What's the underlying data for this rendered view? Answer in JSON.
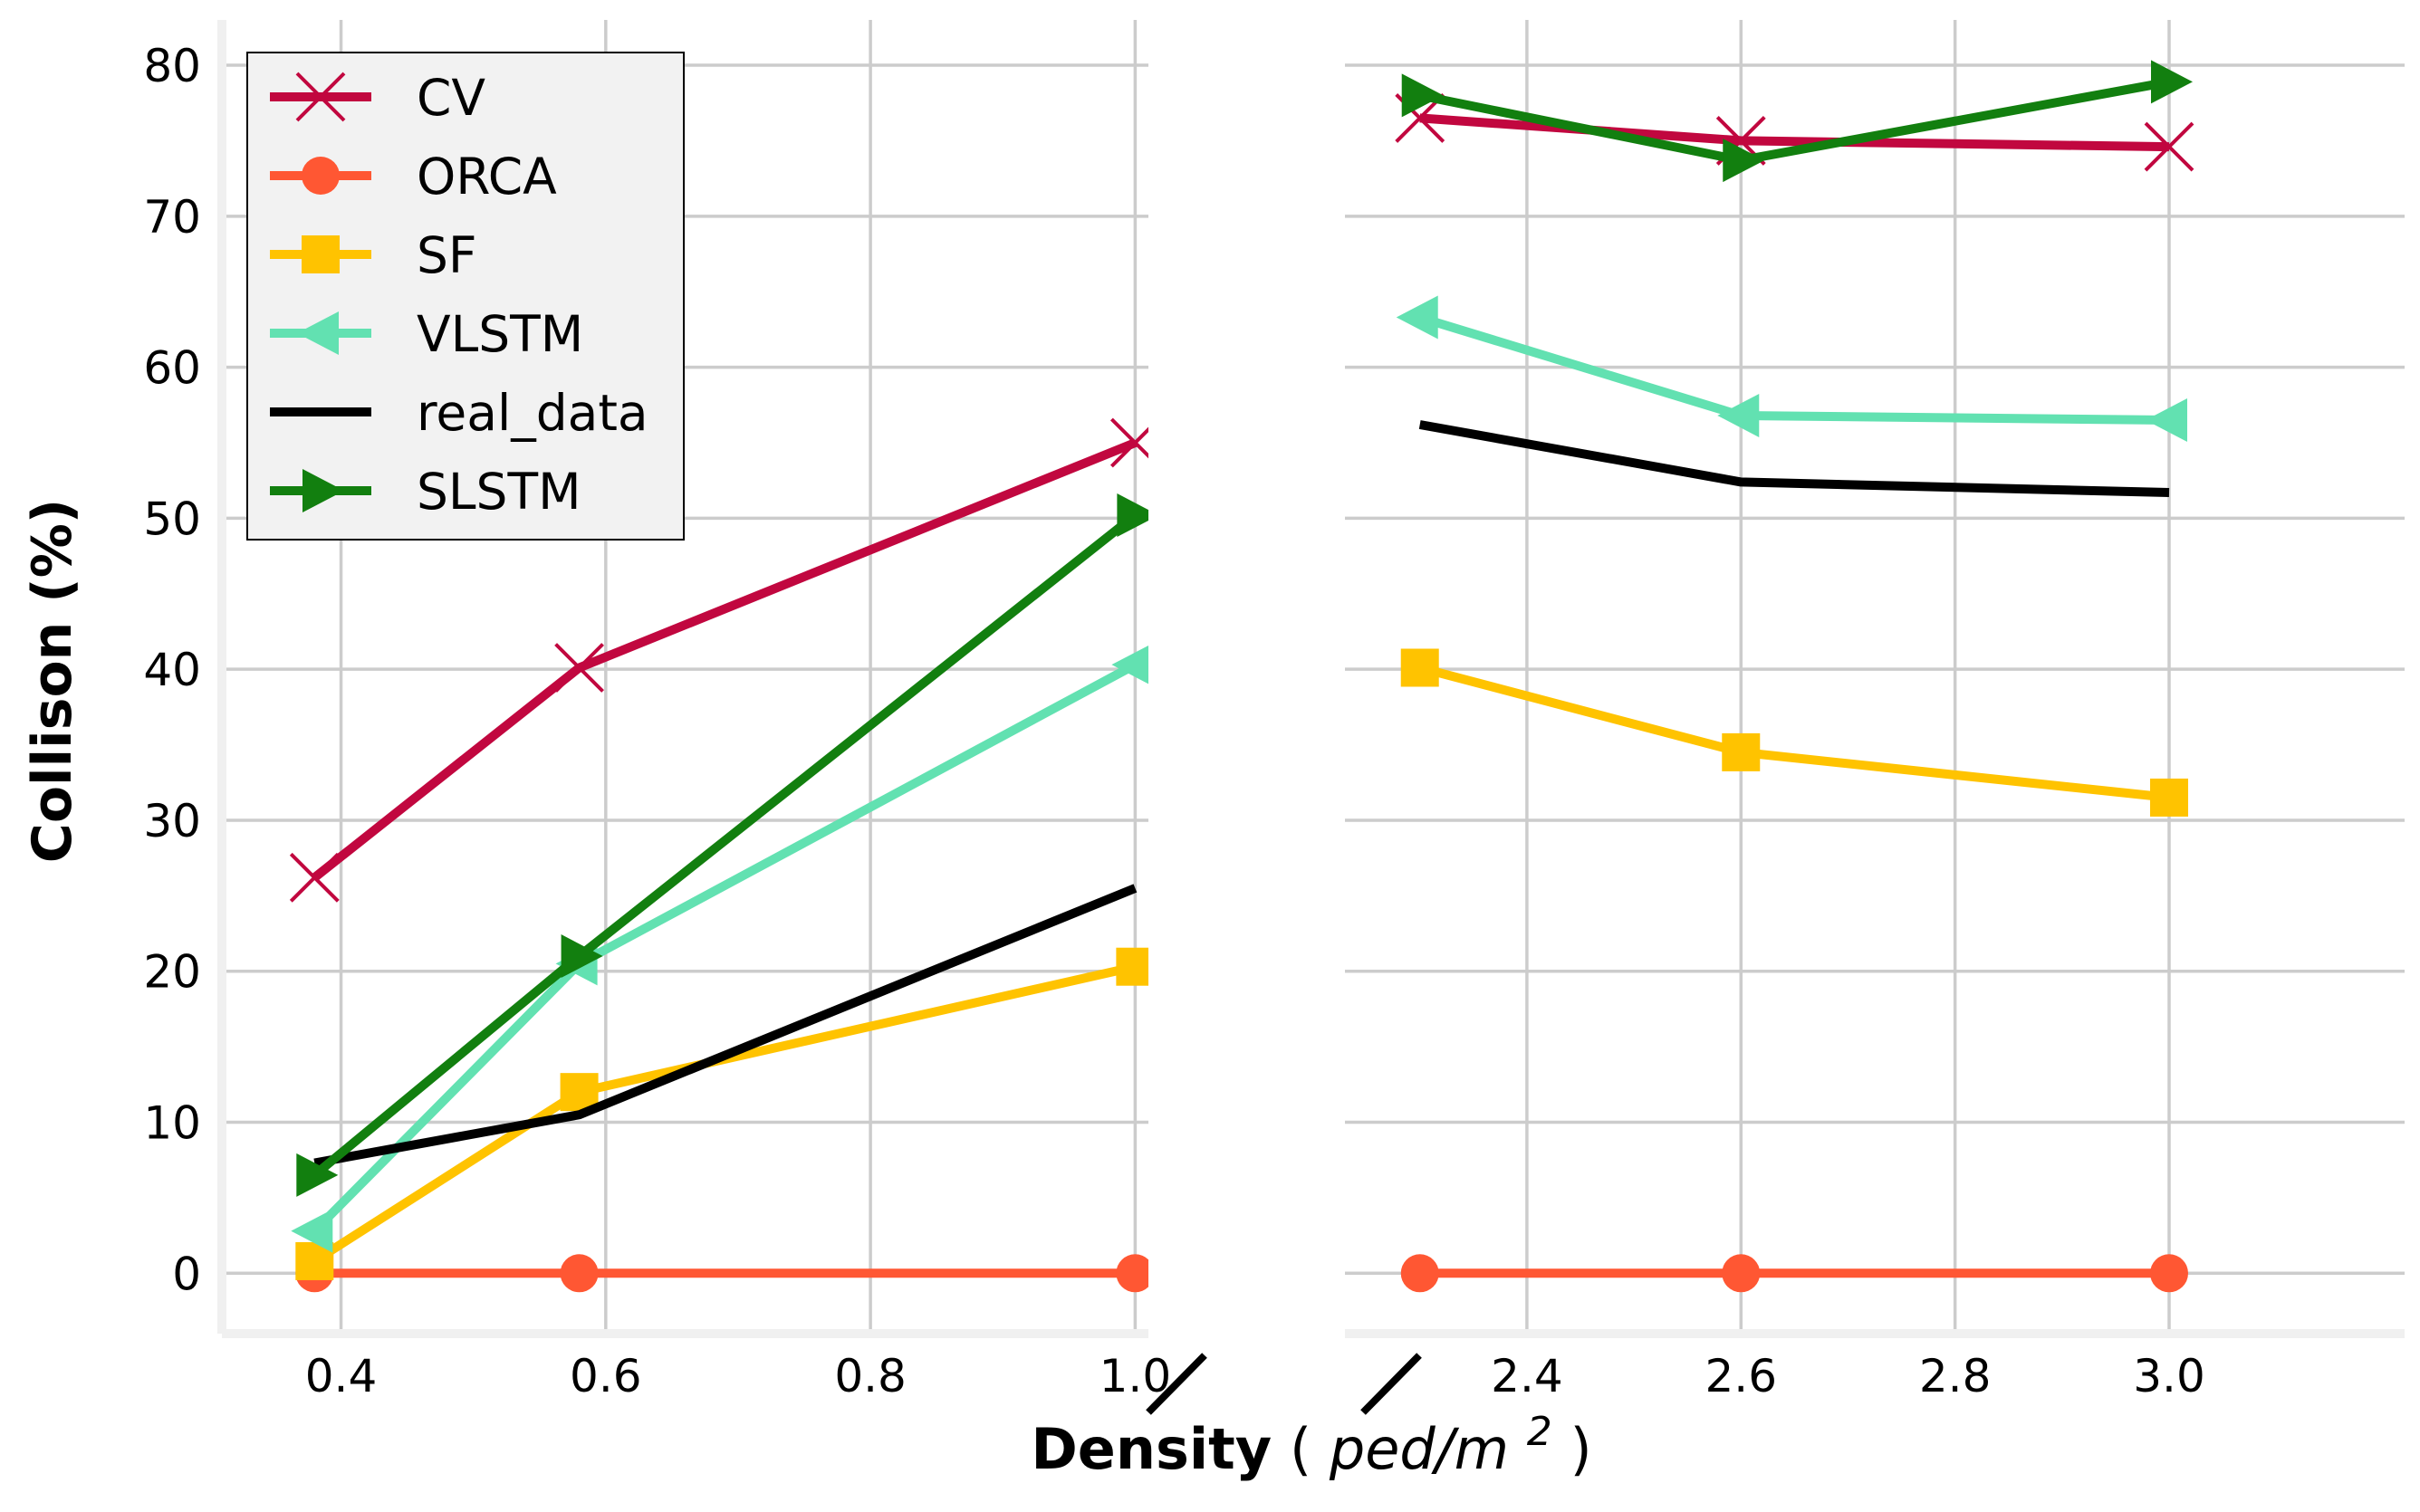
{
  "chart_data": {
    "type": "line",
    "title": "",
    "xlabel_bold": "Density",
    "xlabel_unit_open": "(",
    "xlabel_unit_var": "ped/m",
    "xlabel_unit_exp": "2",
    "xlabel_unit_close": ")",
    "ylabel": "Collison (%)",
    "ylim": [
      -4,
      83
    ],
    "yticks": [
      0,
      10,
      20,
      30,
      40,
      50,
      60,
      70,
      80
    ],
    "ytick_labels": [
      "0",
      "10",
      "20",
      "30",
      "40",
      "50",
      "60",
      "70",
      "80"
    ],
    "broken_axis": true,
    "left_xlim": [
      0.31,
      1.01
    ],
    "right_xlim": [
      2.23,
      3.22
    ],
    "left_xticks": [
      0.4,
      0.6,
      0.8,
      1.0
    ],
    "left_xtick_labels": [
      "0.4",
      "0.6",
      "0.8",
      "1.0"
    ],
    "right_xticks": [
      2.4,
      2.6,
      2.8,
      3.0
    ],
    "right_xtick_labels": [
      "2.4",
      "2.6",
      "2.8",
      "3.0"
    ],
    "grid": true,
    "legend_position": "top-left",
    "x": [
      0.38,
      0.58,
      1.0,
      2.3,
      2.6,
      3.0
    ],
    "series": [
      {
        "name": "CV",
        "color": "#c1073f",
        "marker": "x",
        "values": [
          26.2,
          40.1,
          55.0,
          76.5,
          75.0,
          74.6
        ]
      },
      {
        "name": "ORCA",
        "color": "#ff5733",
        "marker": "circle",
        "values": [
          0,
          0,
          0,
          0,
          0,
          0
        ]
      },
      {
        "name": "SF",
        "color": "#ffc300",
        "marker": "square",
        "values": [
          0.8,
          12.0,
          20.3,
          40.1,
          34.5,
          31.5
        ]
      },
      {
        "name": "VLSTM",
        "color": "#62e1b1",
        "marker": "triangle-left",
        "values": [
          2.8,
          20.5,
          40.3,
          63.3,
          56.8,
          56.5
        ]
      },
      {
        "name": "real_data",
        "color": "#000000",
        "marker": "none",
        "values": [
          7.3,
          10.5,
          25.5,
          56.2,
          52.4,
          51.7
        ]
      },
      {
        "name": "SLSTM",
        "color": "#127f0f",
        "marker": "triangle-right",
        "values": [
          6.5,
          21.0,
          50.2,
          78.0,
          73.7,
          78.9
        ]
      }
    ]
  }
}
